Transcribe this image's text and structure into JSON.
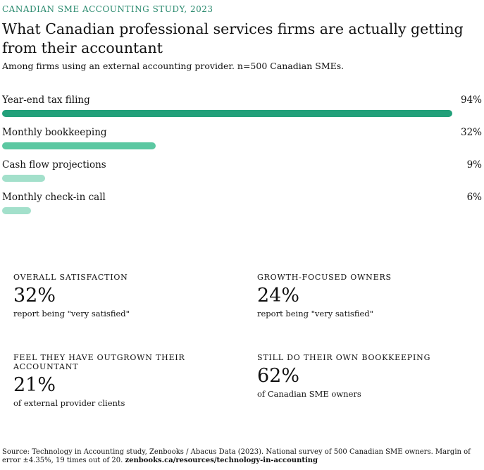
{
  "header": {
    "eyebrow": "CANADIAN SME ACCOUNTING STUDY, 2023",
    "title": "What Canadian professional services firms are actually getting from their accountant",
    "subtitle": "Among firms using an external accounting provider. n=500 Canadian SMEs."
  },
  "chart_data": {
    "type": "bar",
    "orientation": "horizontal",
    "categories": [
      "Year-end tax filing",
      "Monthly bookkeeping",
      "Cash flow projections",
      "Monthly check-in call"
    ],
    "values": [
      94,
      32,
      9,
      6
    ],
    "value_labels": [
      "94%",
      "32%",
      "9%",
      "6%"
    ],
    "unit": "%",
    "xlim": [
      0,
      94
    ],
    "colors": [
      "#22a07a",
      "#5cc8a2",
      "#a3e0cb",
      "#a3e0cb"
    ],
    "title": "What Canadian professional services firms are actually getting from their accountant"
  },
  "stats": [
    {
      "label": "OVERALL SATISFACTION",
      "value": "32%",
      "desc": "report being \"very satisfied\""
    },
    {
      "label": "GROWTH-FOCUSED OWNERS",
      "value": "24%",
      "desc": "report being \"very satisfied\""
    },
    {
      "label": "FEEL THEY HAVE OUTGROWN THEIR ACCOUNTANT",
      "value": "21%",
      "desc": "of external provider clients"
    },
    {
      "label": "STILL DO THEIR OWN BOOKKEEPING",
      "value": "62%",
      "desc": "of Canadian SME owners"
    }
  ],
  "footer": {
    "source": "Source: Technology in Accounting study, Zenbooks / Abacus Data (2023). National survey of 500 Canadian SME owners. Margin of error ±4.35%, 19 times out of 20.",
    "link": "zenbooks.ca/resources/technology-in-accounting"
  }
}
